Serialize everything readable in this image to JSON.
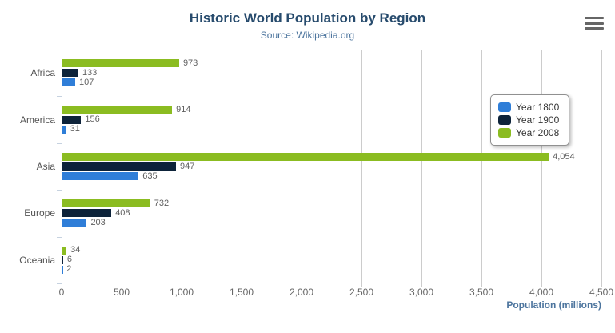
{
  "header": {
    "title": "Historic World Population by Region",
    "subtitle": "Source: Wikipedia.org"
  },
  "toolbar": {
    "context_menu_icon": "hamburger-icon"
  },
  "chart_data": {
    "type": "bar",
    "title": "Historic World Population by Region",
    "subtitle": "Source: Wikipedia.org",
    "categories": [
      "Africa",
      "America",
      "Asia",
      "Europe",
      "Oceania"
    ],
    "series": [
      {
        "name": "Year 1800",
        "color": "#2f7ed8",
        "values": [
          107,
          31,
          635,
          203,
          2
        ],
        "labels": [
          "107",
          "31",
          "635",
          "203",
          "2"
        ]
      },
      {
        "name": "Year 1900",
        "color": "#0d233a",
        "values": [
          133,
          156,
          947,
          408,
          6
        ],
        "labels": [
          "133",
          "156",
          "947",
          "408",
          "6"
        ]
      },
      {
        "name": "Year 2008",
        "color": "#8bbc21",
        "values": [
          973,
          914,
          4054,
          732,
          34
        ],
        "labels": [
          "973",
          "914",
          "4,054",
          "732",
          "34"
        ]
      }
    ],
    "bar_display_order_top_to_bottom": [
      "Year 2008",
      "Year 1900",
      "Year 1800"
    ],
    "xlabel": "Population (millions)",
    "xlim": [
      0,
      4500
    ],
    "xticks": {
      "values": [
        0,
        500,
        1000,
        1500,
        2000,
        2500,
        3000,
        3500,
        4000,
        4500
      ],
      "labels": [
        "0",
        "500",
        "1,000",
        "1,500",
        "2,000",
        "2,500",
        "3,000",
        "3,500",
        "4,000",
        "4,500"
      ]
    },
    "grid": true,
    "legend_position": "right",
    "colors": {
      "title": "#274b6d",
      "subtitle": "#4d759e",
      "axis_title": "#4d759e",
      "gridline": "#cccccc",
      "category_axis_line": "#c6d2e0",
      "data_label": "#606060",
      "background": "#ffffff"
    }
  }
}
